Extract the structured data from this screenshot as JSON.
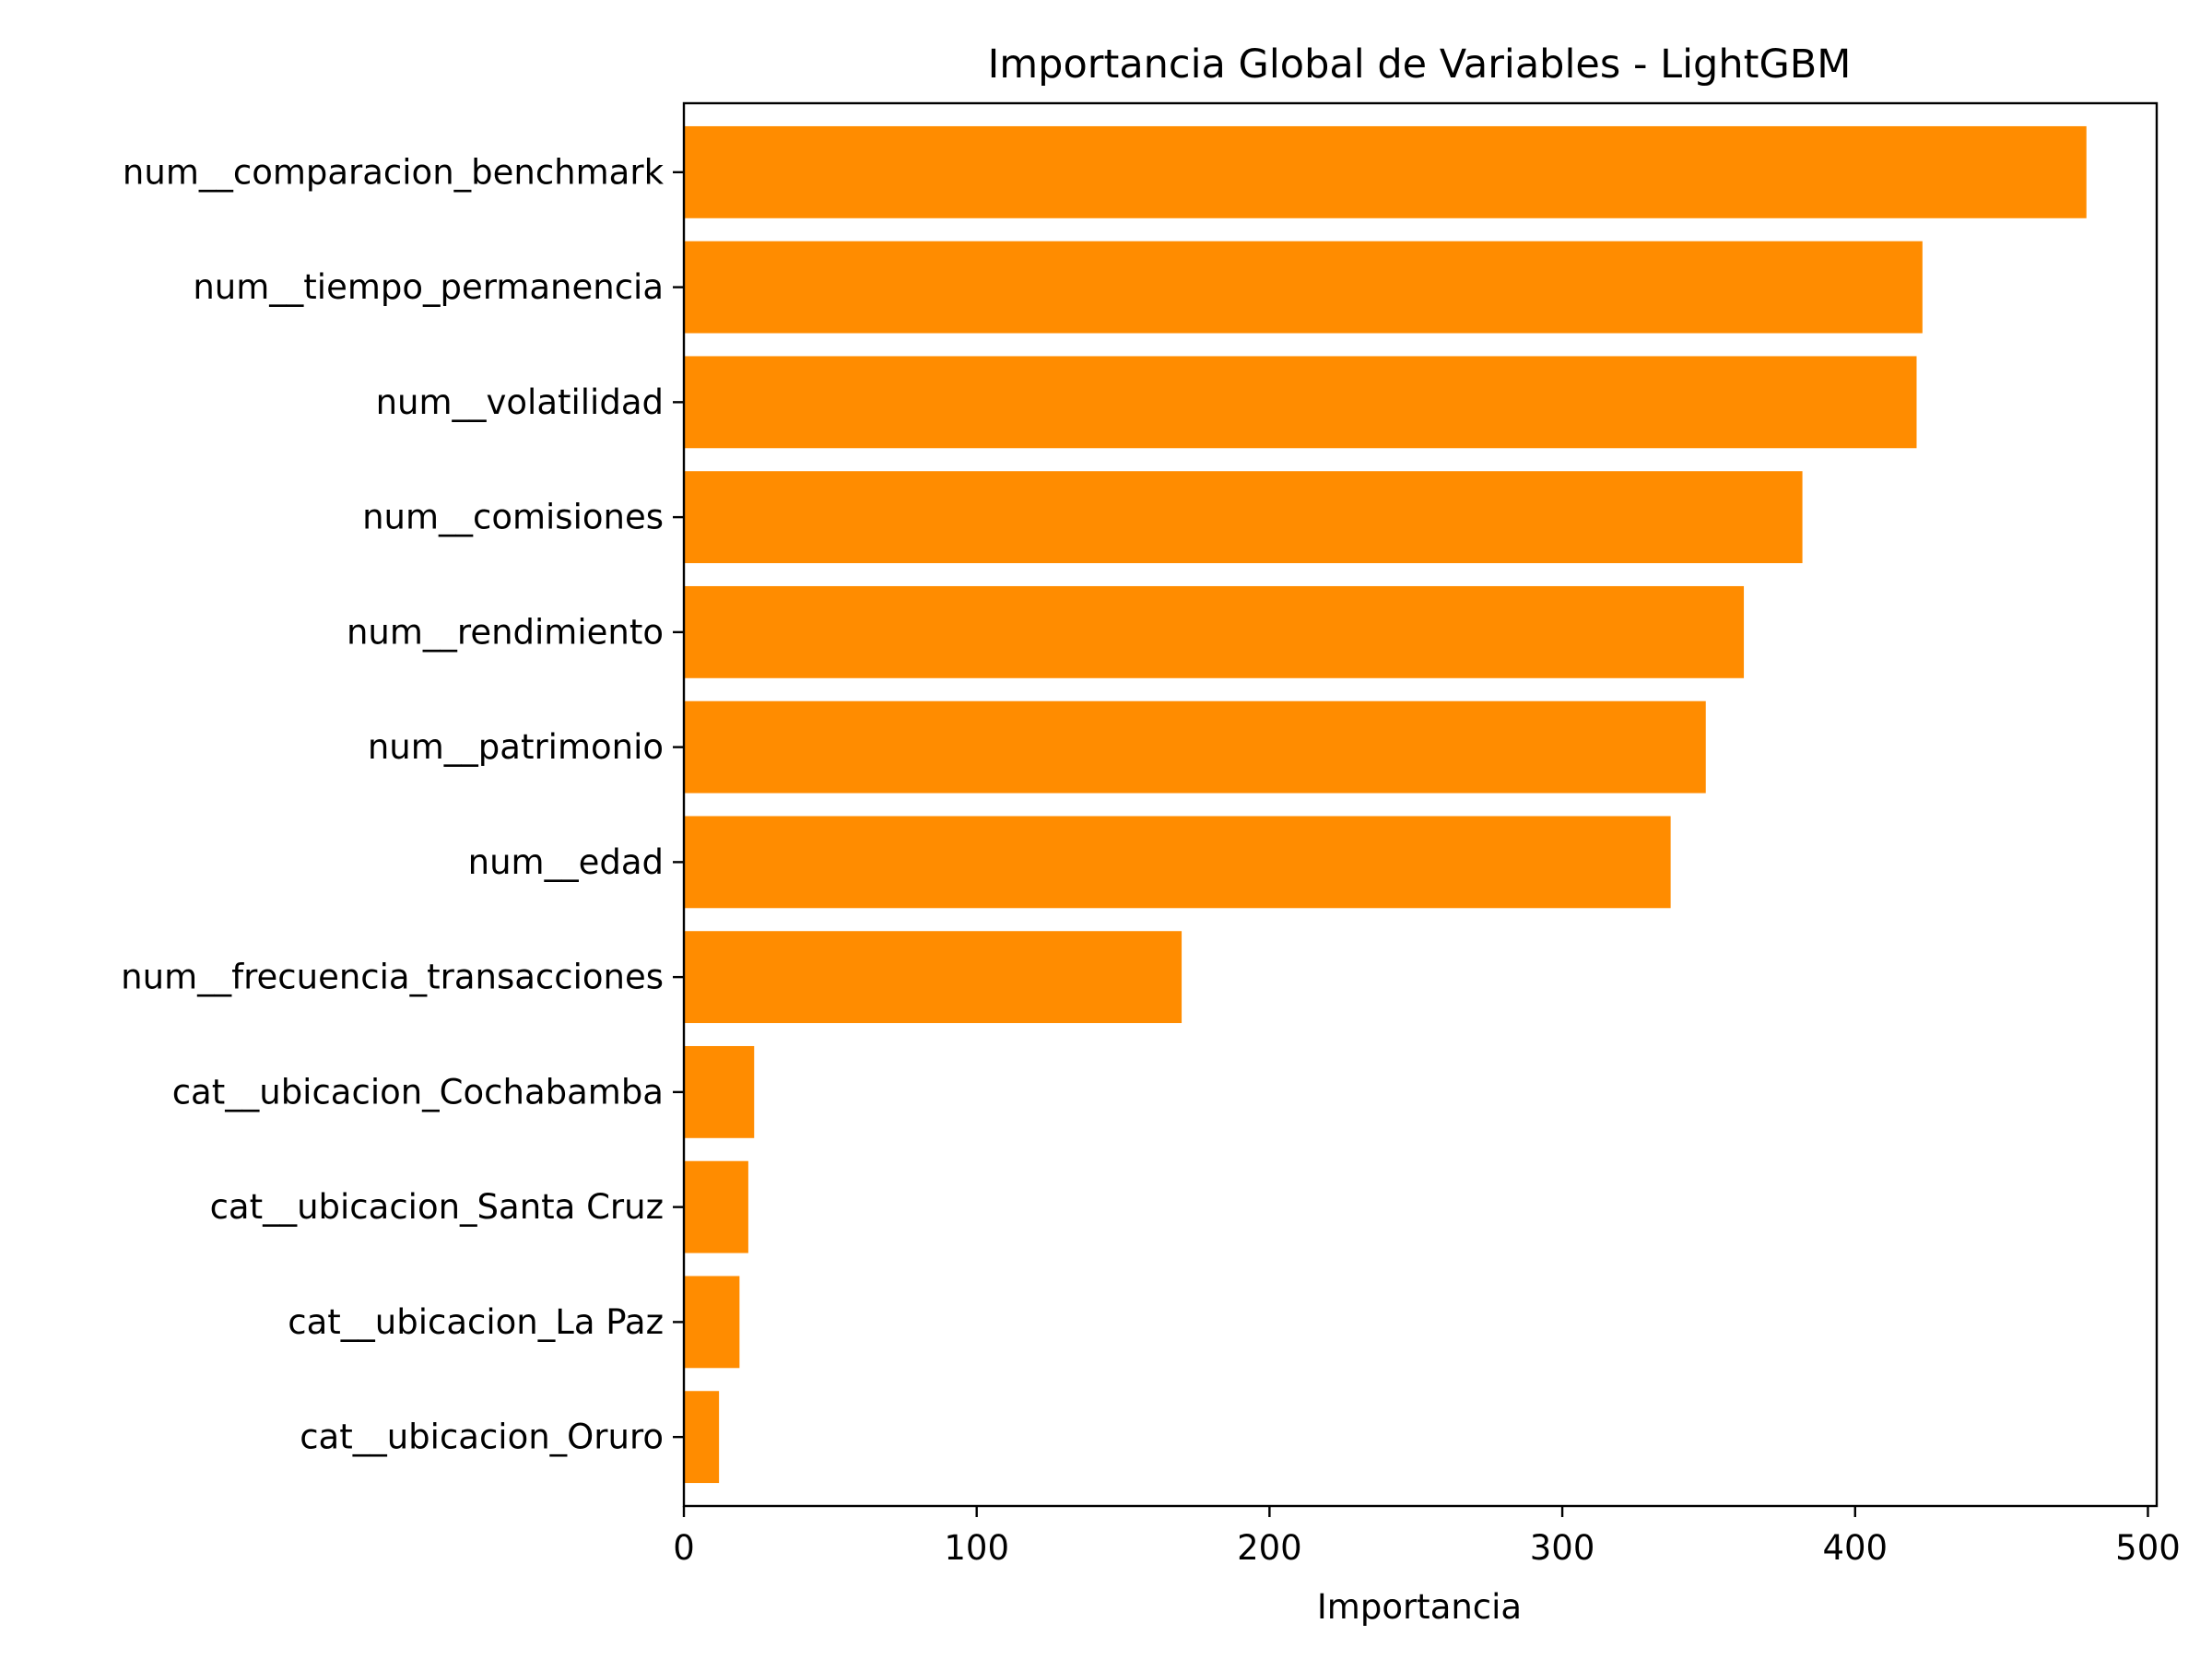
{
  "chart_data": {
    "type": "bar",
    "orientation": "horizontal",
    "title": "Importancia Global de Variables - LightGBM",
    "xlabel": "Importancia",
    "ylabel": "",
    "xlim": [
      0,
      503
    ],
    "xticks": [
      0,
      100,
      200,
      300,
      400,
      500
    ],
    "bar_color": "#ff8c00",
    "grid": false,
    "categories": [
      "num__comparacion_benchmark",
      "num__tiempo_permanencia",
      "num__volatilidad",
      "num__comisiones",
      "num__rendimiento",
      "num__patrimonio",
      "num__edad",
      "num__frecuencia_transacciones",
      "cat__ubicacion_Cochabamba",
      "cat__ubicacion_Santa Cruz",
      "cat__ubicacion_La Paz",
      "cat__ubicacion_Oruro"
    ],
    "values": [
      479,
      423,
      421,
      382,
      362,
      349,
      337,
      170,
      24,
      22,
      19,
      12
    ]
  }
}
